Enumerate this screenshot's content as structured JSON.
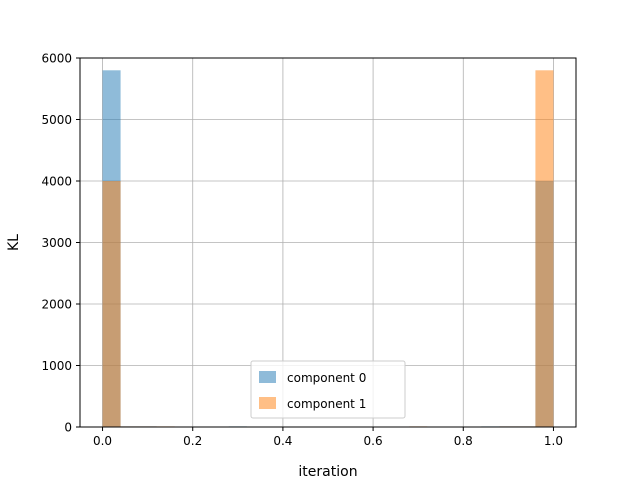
{
  "chart_data": {
    "type": "bar",
    "xlabel": "iteration",
    "ylabel": "KL",
    "xlim": [
      -0.05,
      1.05
    ],
    "ylim": [
      0,
      6000
    ],
    "xticks": [
      0.0,
      0.2,
      0.4,
      0.6,
      0.8,
      1.0
    ],
    "xtick_labels": [
      "0.0",
      "0.2",
      "0.4",
      "0.6",
      "0.8",
      "1.0"
    ],
    "yticks": [
      0,
      1000,
      2000,
      3000,
      4000,
      5000,
      6000
    ],
    "ytick_labels": [
      "0",
      "1000",
      "2000",
      "3000",
      "4000",
      "5000",
      "6000"
    ],
    "grid": true,
    "bins": 25,
    "bin_start": 0.0,
    "bin_width": 0.04,
    "series": [
      {
        "name": "component 0",
        "color": "#1f77b4",
        "alpha": 0.5,
        "values": [
          5800,
          10,
          10,
          0,
          0,
          0,
          0,
          10,
          0,
          0,
          0,
          0,
          0,
          0,
          0,
          0,
          0,
          0,
          0,
          0,
          0,
          10,
          10,
          10,
          4000
        ]
      },
      {
        "name": "component 1",
        "color": "#ff7f0e",
        "alpha": 0.5,
        "values": [
          4000,
          10,
          10,
          10,
          0,
          0,
          0,
          0,
          0,
          0,
          0,
          0,
          0,
          0,
          0,
          0,
          0,
          10,
          0,
          0,
          0,
          0,
          10,
          10,
          5800
        ]
      }
    ],
    "legend": {
      "placement": "lower-center"
    }
  }
}
